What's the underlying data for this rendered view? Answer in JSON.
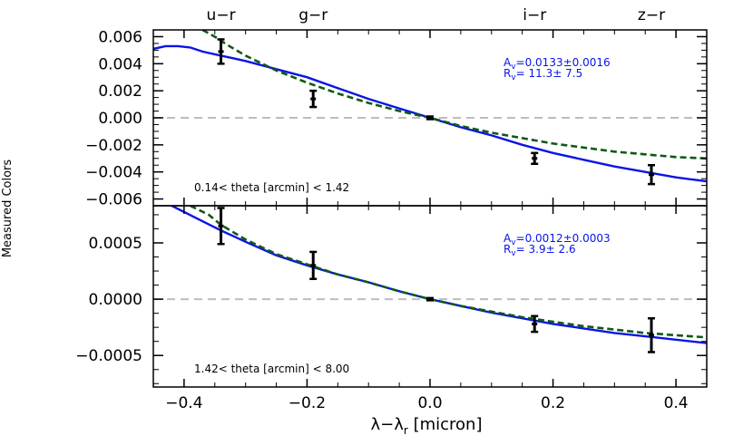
{
  "figure": {
    "ylabel": "Measured Colors",
    "xlabel": "λ−λ",
    "xlabel_sub": "r",
    "xlabel_unit": " [micron]",
    "top_labels": [
      {
        "label": "u−r",
        "x": -0.34
      },
      {
        "label": "g−r",
        "x": -0.19
      },
      {
        "label": "i−r",
        "x": 0.17
      },
      {
        "label": "z−r",
        "x": 0.36
      }
    ],
    "colors": {
      "model_solid": "#0a14e6",
      "model_dashed": "#0f5a14",
      "zero_line": "#bdbdbd",
      "points": "#000000",
      "annotation": "#0a14e6"
    }
  },
  "chart_data": [
    {
      "type": "line",
      "panel": "top",
      "xlim": [
        -0.45,
        0.45
      ],
      "ylim": [
        -0.0065,
        0.0065
      ],
      "xticks": [
        -0.4,
        -0.2,
        0.0,
        0.2,
        0.4
      ],
      "xtick_labels": [
        "−0.4",
        "−0.2",
        "0.0",
        "0.2",
        "0.4"
      ],
      "yticks": [
        0.006,
        0.004,
        0.002,
        0.0,
        -0.002,
        -0.004,
        -0.006
      ],
      "ytick_labels": [
        "0.006",
        "0.004",
        "0.002",
        "0.000",
        "−0.002",
        "−0.004",
        "−0.006"
      ],
      "annotation_lines": [
        {
          "prefix": "A",
          "sub": "v",
          "text": "=0.0133±0.0016"
        },
        {
          "prefix": "R",
          "sub": "v",
          "text": "=  11.3±  7.5"
        }
      ],
      "note": "0.14< theta [arcmin] < 1.42",
      "points": [
        {
          "x": -0.34,
          "y": 0.0049,
          "err": 0.0009
        },
        {
          "x": -0.19,
          "y": 0.0014,
          "err": 0.0006
        },
        {
          "x": 0.0,
          "y": 0.0,
          "err": 0.0001
        },
        {
          "x": 0.17,
          "y": -0.003,
          "err": 0.0004
        },
        {
          "x": 0.36,
          "y": -0.0042,
          "err": 0.0007
        }
      ],
      "series": [
        {
          "style": "solid",
          "x": [
            -0.45,
            -0.43,
            -0.41,
            -0.39,
            -0.37,
            -0.34,
            -0.3,
            -0.25,
            -0.2,
            -0.15,
            -0.1,
            -0.05,
            0.0,
            0.05,
            0.1,
            0.15,
            0.2,
            0.25,
            0.3,
            0.35,
            0.4,
            0.45
          ],
          "y": [
            0.0051,
            0.0053,
            0.0053,
            0.0052,
            0.0049,
            0.0046,
            0.0042,
            0.0036,
            0.003,
            0.0022,
            0.0014,
            0.0007,
            0.0,
            -0.0007,
            -0.0013,
            -0.002,
            -0.0026,
            -0.0031,
            -0.0036,
            -0.004,
            -0.0044,
            -0.0047
          ]
        },
        {
          "style": "dashed",
          "x": [
            -0.37,
            -0.35,
            -0.33,
            -0.3,
            -0.25,
            -0.2,
            -0.15,
            -0.1,
            -0.05,
            0.0,
            0.05,
            0.1,
            0.15,
            0.2,
            0.25,
            0.3,
            0.35,
            0.4,
            0.45
          ],
          "y": [
            0.0065,
            0.006,
            0.0054,
            0.0046,
            0.0035,
            0.0026,
            0.0018,
            0.0011,
            0.0005,
            0.0,
            -0.0006,
            -0.0011,
            -0.0015,
            -0.0019,
            -0.0022,
            -0.0025,
            -0.0027,
            -0.0029,
            -0.003
          ]
        }
      ]
    },
    {
      "type": "line",
      "panel": "bottom",
      "xlim": [
        -0.45,
        0.45
      ],
      "ylim": [
        -0.00078,
        0.00083
      ],
      "xticks": [
        -0.4,
        -0.2,
        0.0,
        0.2,
        0.4
      ],
      "xtick_labels": [
        "−0.4",
        "−0.2",
        "0.0",
        "0.2",
        "0.4"
      ],
      "yticks": [
        0.0005,
        0.0,
        -0.0005
      ],
      "ytick_labels": [
        "0.0005",
        "0.0000",
        "−0.0005"
      ],
      "annotation_lines": [
        {
          "prefix": "A",
          "sub": "v",
          "text": "=0.0012±0.0003"
        },
        {
          "prefix": "R",
          "sub": "v",
          "text": "=   3.9±  2.6"
        }
      ],
      "note": "1.42< theta [arcmin] < 8.00",
      "points": [
        {
          "x": -0.34,
          "y": 0.00065,
          "err": 0.00016
        },
        {
          "x": -0.19,
          "y": 0.0003,
          "err": 0.00012
        },
        {
          "x": 0.0,
          "y": 0.0,
          "err": 1e-05
        },
        {
          "x": 0.17,
          "y": -0.00022,
          "err": 7e-05
        },
        {
          "x": 0.36,
          "y": -0.00032,
          "err": 0.00015
        }
      ],
      "series": [
        {
          "style": "solid",
          "x": [
            -0.42,
            -0.38,
            -0.34,
            -0.3,
            -0.25,
            -0.2,
            -0.15,
            -0.1,
            -0.05,
            0.0,
            0.05,
            0.1,
            0.15,
            0.2,
            0.25,
            0.3,
            0.35,
            0.4,
            0.45
          ],
          "y": [
            0.00083,
            0.00072,
            0.00061,
            0.00051,
            0.00039,
            0.0003,
            0.00022,
            0.00015,
            7e-05,
            0.0,
            -6e-05,
            -0.00012,
            -0.00017,
            -0.00022,
            -0.00026,
            -0.0003,
            -0.00033,
            -0.00036,
            -0.00039
          ]
        },
        {
          "style": "dashed",
          "x": [
            -0.39,
            -0.36,
            -0.34,
            -0.3,
            -0.25,
            -0.2,
            -0.15,
            -0.1,
            -0.05,
            0.0,
            0.05,
            0.1,
            0.15,
            0.2,
            0.25,
            0.3,
            0.35,
            0.4,
            0.45
          ],
          "y": [
            0.00083,
            0.00075,
            0.00066,
            0.00053,
            0.0004,
            0.00031,
            0.00022,
            0.00015,
            7e-05,
            0.0,
            -6e-05,
            -0.00011,
            -0.00016,
            -0.0002,
            -0.00024,
            -0.00027,
            -0.0003,
            -0.00032,
            -0.00034
          ]
        }
      ]
    }
  ]
}
